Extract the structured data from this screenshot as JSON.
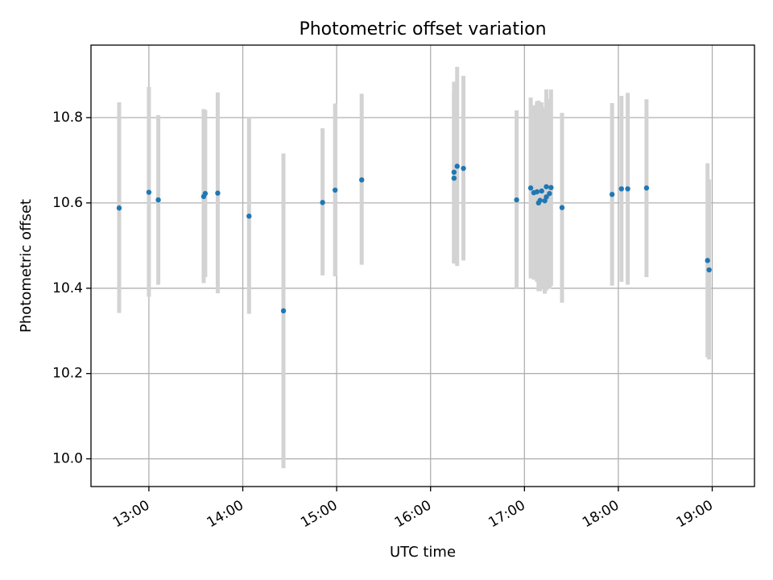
{
  "chart_data": {
    "type": "scatter",
    "title": "Photometric offset variation",
    "xlabel": "UTC time",
    "ylabel": "Photometric offset",
    "xlim": [
      "12:23",
      "19:27"
    ],
    "ylim": [
      9.935,
      10.97
    ],
    "grid": true,
    "x_ticks": [
      "13:00",
      "14:00",
      "15:00",
      "16:00",
      "17:00",
      "18:00",
      "19:00"
    ],
    "y_ticks": [
      "10.0",
      "10.2",
      "10.4",
      "10.6",
      "10.8"
    ],
    "colors": {
      "point": "#1f77b4",
      "errorbar": "#d3d3d3",
      "grid": "#b0b0b0"
    },
    "series": [
      {
        "points": [
          {
            "x": "12:41",
            "y": 10.588,
            "lo": 10.342,
            "hi": 10.836
          },
          {
            "x": "13:00",
            "y": 10.625,
            "lo": 10.38,
            "hi": 10.872
          },
          {
            "x": "13:06",
            "y": 10.607,
            "lo": 10.408,
            "hi": 10.806
          },
          {
            "x": "13:35",
            "y": 10.615,
            "lo": 10.412,
            "hi": 10.82
          },
          {
            "x": "13:36",
            "y": 10.622,
            "lo": 10.426,
            "hi": 10.818
          },
          {
            "x": "13:44",
            "y": 10.623,
            "lo": 10.388,
            "hi": 10.859
          },
          {
            "x": "14:04",
            "y": 10.569,
            "lo": 10.34,
            "hi": 10.8
          },
          {
            "x": "14:26",
            "y": 10.347,
            "lo": 9.978,
            "hi": 10.716
          },
          {
            "x": "14:51",
            "y": 10.601,
            "lo": 10.43,
            "hi": 10.775
          },
          {
            "x": "14:59",
            "y": 10.63,
            "lo": 10.428,
            "hi": 10.833
          },
          {
            "x": "15:16",
            "y": 10.654,
            "lo": 10.455,
            "hi": 10.856
          },
          {
            "x": "16:15",
            "y": 10.672,
            "lo": 10.458,
            "hi": 10.884
          },
          {
            "x": "16:15",
            "y": 10.658,
            "lo": 10.458,
            "hi": 10.858
          },
          {
            "x": "16:17",
            "y": 10.686,
            "lo": 10.452,
            "hi": 10.919
          },
          {
            "x": "16:21",
            "y": 10.681,
            "lo": 10.465,
            "hi": 10.898
          },
          {
            "x": "16:55",
            "y": 10.607,
            "lo": 10.398,
            "hi": 10.817
          },
          {
            "x": "17:04",
            "y": 10.635,
            "lo": 10.423,
            "hi": 10.847
          },
          {
            "x": "17:06",
            "y": 10.624,
            "lo": 10.42,
            "hi": 10.829
          },
          {
            "x": "17:08",
            "y": 10.626,
            "lo": 10.415,
            "hi": 10.838
          },
          {
            "x": "17:09",
            "y": 10.6,
            "lo": 10.393,
            "hi": 10.84
          },
          {
            "x": "17:10",
            "y": 10.606,
            "lo": 10.393,
            "hi": 10.818
          },
          {
            "x": "17:11",
            "y": 10.628,
            "lo": 10.4,
            "hi": 10.836
          },
          {
            "x": "17:13",
            "y": 10.605,
            "lo": 10.387,
            "hi": 10.824
          },
          {
            "x": "17:14",
            "y": 10.614,
            "lo": 10.395,
            "hi": 10.866
          },
          {
            "x": "17:14",
            "y": 10.638,
            "lo": 10.408,
            "hi": 10.866
          },
          {
            "x": "17:16",
            "y": 10.622,
            "lo": 10.399,
            "hi": 10.844
          },
          {
            "x": "17:17",
            "y": 10.636,
            "lo": 10.405,
            "hi": 10.866
          },
          {
            "x": "17:24",
            "y": 10.589,
            "lo": 10.366,
            "hi": 10.811
          },
          {
            "x": "17:56",
            "y": 10.62,
            "lo": 10.406,
            "hi": 10.834
          },
          {
            "x": "18:02",
            "y": 10.633,
            "lo": 10.415,
            "hi": 10.851
          },
          {
            "x": "18:06",
            "y": 10.633,
            "lo": 10.408,
            "hi": 10.858
          },
          {
            "x": "18:18",
            "y": 10.635,
            "lo": 10.426,
            "hi": 10.843
          },
          {
            "x": "18:57",
            "y": 10.465,
            "lo": 10.238,
            "hi": 10.693
          },
          {
            "x": "18:58",
            "y": 10.443,
            "lo": 10.233,
            "hi": 10.655
          }
        ]
      }
    ]
  }
}
